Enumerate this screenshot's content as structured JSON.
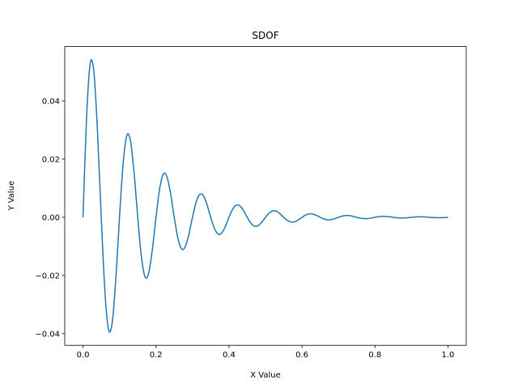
{
  "chart_data": {
    "type": "line",
    "title": "SDOF",
    "x_label": "X Value",
    "y_label": "Y Value",
    "x": [
      0,
      0.01,
      0.02,
      0.03,
      0.04,
      0.05,
      0.06,
      0.07,
      0.08,
      0.09,
      0.1,
      0.11,
      0.12,
      0.13,
      0.14,
      0.15,
      0.16,
      0.17,
      0.18,
      0.19,
      0.2,
      0.21,
      0.22,
      0.23,
      0.24,
      0.25,
      0.26,
      0.27,
      0.28,
      0.29,
      0.3,
      0.31,
      0.32,
      0.33,
      0.34,
      0.35,
      0.36,
      0.37,
      0.38,
      0.39,
      0.4,
      0.41,
      0.42,
      0.43,
      0.44,
      0.45,
      0.46,
      0.47,
      0.48,
      0.49,
      0.5,
      0.51,
      0.52,
      0.53,
      0.54,
      0.55,
      0.56,
      0.57,
      0.58,
      0.59,
      0.6,
      0.61,
      0.62,
      0.63,
      0.64,
      0.65,
      0.66,
      0.67,
      0.68,
      0.69,
      0.7,
      0.71,
      0.72,
      0.73,
      0.74,
      0.75,
      0.76,
      0.77,
      0.78,
      0.79,
      0.8,
      0.81,
      0.82,
      0.83,
      0.84,
      0.85,
      0.86,
      0.87,
      0.88,
      0.89,
      0.9,
      0.91,
      0.92,
      0.93,
      0.94,
      0.95,
      0.96,
      0.97,
      0.98,
      0.99,
      1.0
    ],
    "series": [
      {
        "color": "#1f77b4",
        "values": [
          0,
          0.03492,
          0.05302,
          0.04976,
          0.02887,
          0,
          -0.02542,
          -0.03861,
          -0.03624,
          -0.02101,
          0,
          0.0185,
          0.0281,
          0.02636,
          0.01529,
          0,
          -0.01347,
          -0.02046,
          -0.0192,
          -0.01113,
          0,
          0.0098,
          0.01489,
          0.01397,
          0.00811,
          0,
          -0.00714,
          -0.01084,
          -0.01018,
          -0.0059,
          0,
          0.0052,
          0.00789,
          0.0074,
          0.0043,
          0,
          -0.00378,
          -0.00574,
          -0.00539,
          -0.00313,
          0,
          0.00275,
          0.00418,
          0.00392,
          0.00228,
          0,
          -0.002,
          -0.00304,
          -0.00286,
          -0.00166,
          0,
          0.00146,
          0.00222,
          0.00208,
          0.00121,
          0,
          -0.00106,
          -0.00161,
          -0.00151,
          -0.00088,
          0,
          0.00077,
          0.00117,
          0.0011,
          0.00064,
          0,
          -0.00056,
          -0.00086,
          -0.0008,
          -0.00047,
          0,
          0.00041,
          0.00062,
          0.00058,
          0.00034,
          0,
          -0.0003,
          -0.00045,
          -0.00043,
          -0.00025,
          0,
          0.00022,
          0.00033,
          0.00031,
          0.00018,
          0,
          -0.00016,
          -0.00024,
          -0.00023,
          -0.00013,
          0,
          0.00012,
          0.00017,
          0.00016,
          0.0001,
          0,
          -8e-05,
          -0.00013,
          -0.00012,
          -7e-05,
          0
        ]
      }
    ],
    "xlim": [
      -0.05,
      1.05
    ],
    "xticks": [
      {
        "value": 0,
        "label": "0.0"
      },
      {
        "value": 0.2,
        "label": "0.2"
      },
      {
        "value": 0.4,
        "label": "0.4"
      },
      {
        "value": 0.6,
        "label": "0.6"
      },
      {
        "value": 0.8,
        "label": "0.8"
      },
      {
        "value": 1.0,
        "label": "1.0"
      }
    ],
    "ylim": [
      -0.044,
      0.0587
    ],
    "yticks": [
      {
        "value": -0.04,
        "label": "−0.04"
      },
      {
        "value": -0.02,
        "label": "−0.02"
      },
      {
        "value": 0,
        "label": "0.00"
      },
      {
        "value": 0.02,
        "label": "0.02"
      },
      {
        "value": 0.04,
        "label": "0.04"
      }
    ],
    "grid": false
  }
}
